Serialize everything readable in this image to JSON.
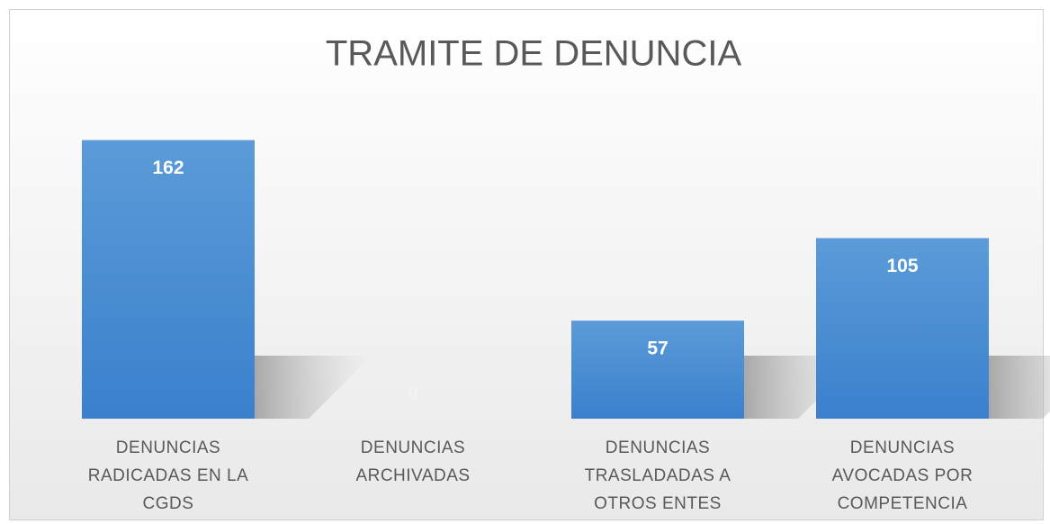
{
  "chart_data": {
    "type": "bar",
    "title": "TRAMITE DE DENUNCIA",
    "categories": [
      "DENUNCIAS RADICADAS  EN LA CGDS",
      "DENUNCIAS ARCHIVADAS",
      "DENUNCIAS TRASLADADAS A OTROS ENTES",
      "DENUNCIAS AVOCADAS POR COMPETENCIA"
    ],
    "values": [
      162,
      0,
      57,
      105
    ],
    "color": "#4a8fd6"
  }
}
